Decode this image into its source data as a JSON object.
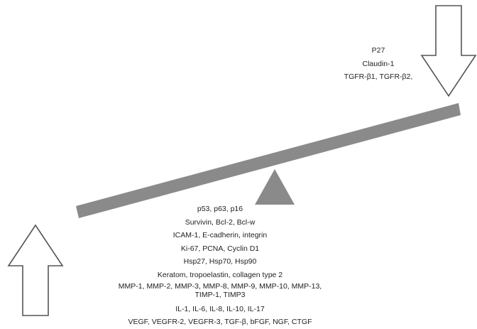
{
  "upregulated_markers": [
    "P27",
    "Claudin-1",
    "TGFR-β1, TGFR-β2,"
  ],
  "downregulated_markers": [
    "p53, p63, p16",
    "Survivin, Bcl-2, Bcl-w",
    "ICAM-1, E-cadherin, integrin",
    "Ki-67, PCNA, Cyclin D1",
    "Hsp27, Hsp70, Hsp90",
    "Keratom, tropoelastin, collagen type 2",
    "MMP-1, MMP-2, MMP-3, MMP-8, MMP-9, MMP-10, MMP-13, TIMP-1, TIMP3",
    "IL-1, IL-6, IL-8, IL-10, IL-17",
    "VEGF, VEGFR-2, VEGFR-3, TGF-β, bFGF, NGF, CTGF"
  ],
  "colors": {
    "beam": "#8a8a8a",
    "fulcrum": "#8a8a8a",
    "arrow_stroke": "#555555",
    "arrow_fill": "#ffffff",
    "text": "#222222"
  },
  "icons": {
    "down_arrow": "hollow-down-arrow-icon",
    "up_arrow": "hollow-up-arrow-icon",
    "fulcrum": "triangle-fulcrum-icon"
  }
}
